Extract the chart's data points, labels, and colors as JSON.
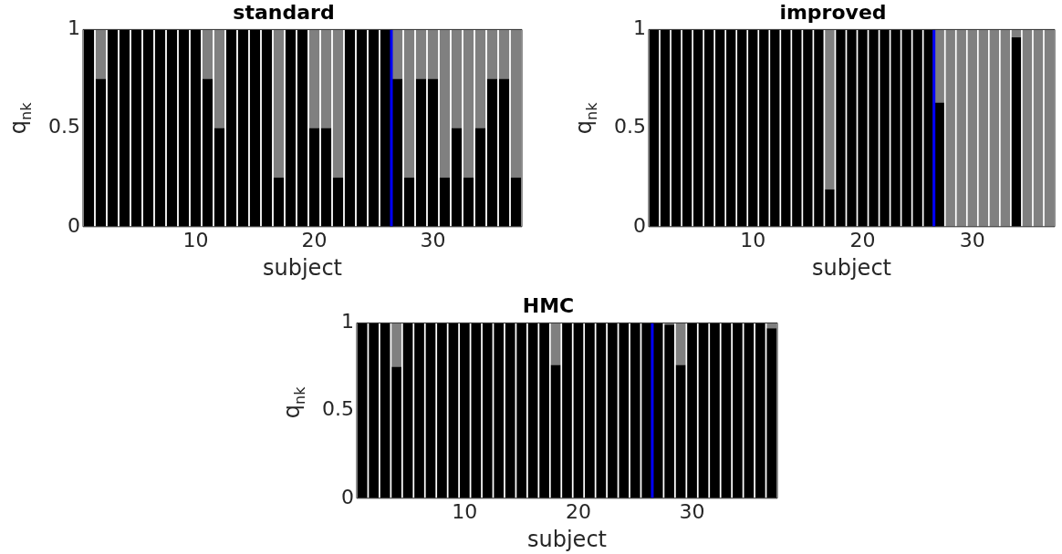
{
  "chart_data": [
    {
      "type": "bar",
      "stacked": true,
      "title": "standard",
      "xlabel": "subject",
      "ylabel": "q$_{nk}$",
      "legend": false,
      "grid": false,
      "x": [
        1,
        2,
        3,
        4,
        5,
        6,
        7,
        8,
        9,
        10,
        11,
        12,
        13,
        14,
        15,
        16,
        17,
        18,
        19,
        20,
        21,
        22,
        23,
        24,
        25,
        26,
        27,
        28,
        29,
        30,
        31,
        32,
        33,
        34,
        35,
        36,
        37
      ],
      "xlim": [
        0.5,
        37.5
      ],
      "xticks": [
        10,
        20,
        30
      ],
      "ylim": [
        0,
        1
      ],
      "yticks": [
        0,
        0.5,
        1
      ],
      "series": [
        {
          "color": "#000000",
          "values": [
            1,
            0.75,
            1,
            1,
            1,
            1,
            1,
            1,
            1,
            1,
            0.75,
            0.5,
            1,
            1,
            1,
            1,
            0.25,
            1,
            1,
            0.5,
            0.5,
            0.25,
            1,
            1,
            1,
            1,
            0.75,
            0.25,
            0.75,
            0.75,
            0.25,
            0.5,
            0.25,
            0.5,
            0.75,
            0.75,
            0.25
          ]
        },
        {
          "color": "#808080",
          "values": [
            0,
            0.25,
            0,
            0,
            0,
            0,
            0,
            0,
            0,
            0,
            0.25,
            0.5,
            0,
            0,
            0,
            0,
            0.75,
            0,
            0,
            0.5,
            0.5,
            0.75,
            0,
            0,
            0,
            0,
            0.25,
            0.75,
            0.25,
            0.25,
            0.75,
            0.5,
            0.75,
            0.5,
            0.25,
            0.25,
            0.75
          ]
        }
      ],
      "ref_lines": [
        {
          "axis": "x",
          "value": 26.5,
          "color": "#0000ff"
        }
      ]
    },
    {
      "type": "bar",
      "stacked": true,
      "title": "improved",
      "xlabel": "subject",
      "ylabel": "q$_{nk}$",
      "legend": false,
      "grid": false,
      "x": [
        1,
        2,
        3,
        4,
        5,
        6,
        7,
        8,
        9,
        10,
        11,
        12,
        13,
        14,
        15,
        16,
        17,
        18,
        19,
        20,
        21,
        22,
        23,
        24,
        25,
        26,
        27,
        28,
        29,
        30,
        31,
        32,
        33,
        34,
        35,
        36,
        37
      ],
      "xlim": [
        0.5,
        37.5
      ],
      "xticks": [
        10,
        20,
        30
      ],
      "ylim": [
        0,
        1
      ],
      "yticks": [
        0,
        0.5,
        1
      ],
      "series": [
        {
          "color": "#000000",
          "values": [
            1,
            1,
            1,
            1,
            1,
            1,
            1,
            1,
            1,
            1,
            1,
            1,
            1,
            1,
            1,
            1,
            0.19,
            1,
            1,
            1,
            1,
            1,
            1,
            1,
            1,
            1,
            0.63,
            0,
            0,
            0,
            0,
            0,
            0,
            0.96,
            0,
            0,
            0
          ]
        },
        {
          "color": "#808080",
          "values": [
            0,
            0,
            0,
            0,
            0,
            0,
            0,
            0,
            0,
            0,
            0,
            0,
            0,
            0,
            0,
            0,
            0.81,
            0,
            0,
            0,
            0,
            0,
            0,
            0,
            0,
            0,
            0.37,
            1,
            1,
            1,
            1,
            1,
            1,
            0.04,
            1,
            1,
            1
          ]
        }
      ],
      "ref_lines": [
        {
          "axis": "x",
          "value": 26.5,
          "color": "#0000ff"
        }
      ]
    },
    {
      "type": "bar",
      "stacked": true,
      "title": "HMC",
      "xlabel": "subject",
      "ylabel": "q$_{nk}$",
      "legend": false,
      "grid": false,
      "x": [
        1,
        2,
        3,
        4,
        5,
        6,
        7,
        8,
        9,
        10,
        11,
        12,
        13,
        14,
        15,
        16,
        17,
        18,
        19,
        20,
        21,
        22,
        23,
        24,
        25,
        26,
        27,
        28,
        29,
        30,
        31,
        32,
        33,
        34,
        35,
        36,
        37
      ],
      "xlim": [
        0.5,
        37.5
      ],
      "xticks": [
        10,
        20,
        30
      ],
      "ylim": [
        0,
        1
      ],
      "yticks": [
        0,
        0.5,
        1
      ],
      "series": [
        {
          "color": "#000000",
          "values": [
            1,
            1,
            1,
            0.75,
            1,
            1,
            1,
            1,
            1,
            1,
            1,
            1,
            1,
            1,
            1,
            1,
            1,
            0.76,
            1,
            1,
            1,
            1,
            1,
            1,
            1,
            1,
            1,
            0.99,
            0.76,
            1,
            1,
            1,
            1,
            1,
            1,
            1,
            0.97
          ]
        },
        {
          "color": "#808080",
          "values": [
            0,
            0,
            0,
            0.25,
            0,
            0,
            0,
            0,
            0,
            0,
            0,
            0,
            0,
            0,
            0,
            0,
            0,
            0.24,
            0,
            0,
            0,
            0,
            0,
            0,
            0,
            0,
            0,
            0.01,
            0.24,
            0,
            0,
            0,
            0,
            0,
            0,
            0,
            0.03
          ]
        }
      ],
      "ref_lines": [
        {
          "axis": "x",
          "value": 26.5,
          "color": "#0000ff"
        }
      ]
    }
  ]
}
